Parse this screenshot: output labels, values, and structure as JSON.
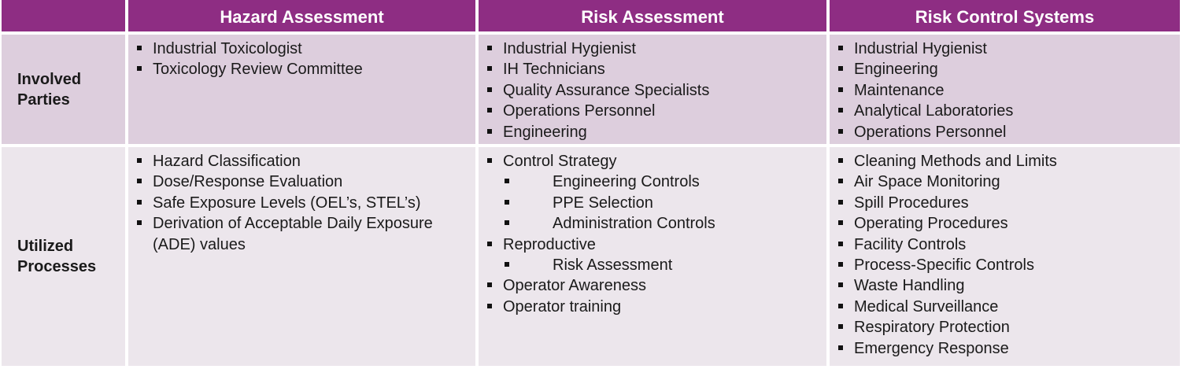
{
  "headers": [
    "Hazard Assessment",
    "Risk Assessment",
    "Risk Control Systems"
  ],
  "rows": [
    {
      "label_lines": [
        "Involved",
        "Parties"
      ],
      "cells": [
        [
          {
            "level": 1,
            "text": "Industrial Toxicologist"
          },
          {
            "level": 1,
            "text": "Toxicology Review Committee"
          }
        ],
        [
          {
            "level": 1,
            "text": "Industrial Hygienist"
          },
          {
            "level": 1,
            "text": "IH Technicians"
          },
          {
            "level": 1,
            "text": "Quality Assurance Specialists"
          },
          {
            "level": 1,
            "text": "Operations Personnel"
          },
          {
            "level": 1,
            "text": "Engineering"
          }
        ],
        [
          {
            "level": 1,
            "text": "Industrial Hygienist"
          },
          {
            "level": 1,
            "text": "Engineering"
          },
          {
            "level": 1,
            "text": "Maintenance"
          },
          {
            "level": 1,
            "text": "Analytical Laboratories"
          },
          {
            "level": 1,
            "text": "Operations Personnel"
          }
        ]
      ]
    },
    {
      "label_lines": [
        "Utilized",
        "Processes"
      ],
      "cells": [
        [
          {
            "level": 1,
            "text": "Hazard Classification"
          },
          {
            "level": 1,
            "text": "Dose/Response Evaluation"
          },
          {
            "level": 1,
            "text": "Safe Exposure Levels (OEL’s, STEL’s)"
          },
          {
            "level": 1,
            "text": "Derivation of Acceptable Daily Exposure (ADE) values"
          }
        ],
        [
          {
            "level": 1,
            "text": "Control Strategy"
          },
          {
            "level": 2,
            "text": "Engineering Controls"
          },
          {
            "level": 2,
            "text": "PPE Selection"
          },
          {
            "level": 2,
            "text": "Administration Controls"
          },
          {
            "level": 1,
            "text": "Reproductive"
          },
          {
            "level": 2,
            "text": "Risk Assessment"
          },
          {
            "level": 1,
            "text": "Operator Awareness"
          },
          {
            "level": 1,
            "text": "Operator training"
          }
        ],
        [
          {
            "level": 1,
            "text": "Cleaning Methods and Limits"
          },
          {
            "level": 1,
            "text": "Air Space Monitoring"
          },
          {
            "level": 1,
            "text": "Spill Procedures"
          },
          {
            "level": 1,
            "text": "Operating Procedures"
          },
          {
            "level": 1,
            "text": "Facility Controls"
          },
          {
            "level": 1,
            "text": "Process-Specific Controls"
          },
          {
            "level": 1,
            "text": "Waste Handling"
          },
          {
            "level": 1,
            "text": "Medical Surveillance"
          },
          {
            "level": 1,
            "text": "Respiratory Protection"
          },
          {
            "level": 1,
            "text": "Emergency Response"
          }
        ]
      ]
    }
  ]
}
